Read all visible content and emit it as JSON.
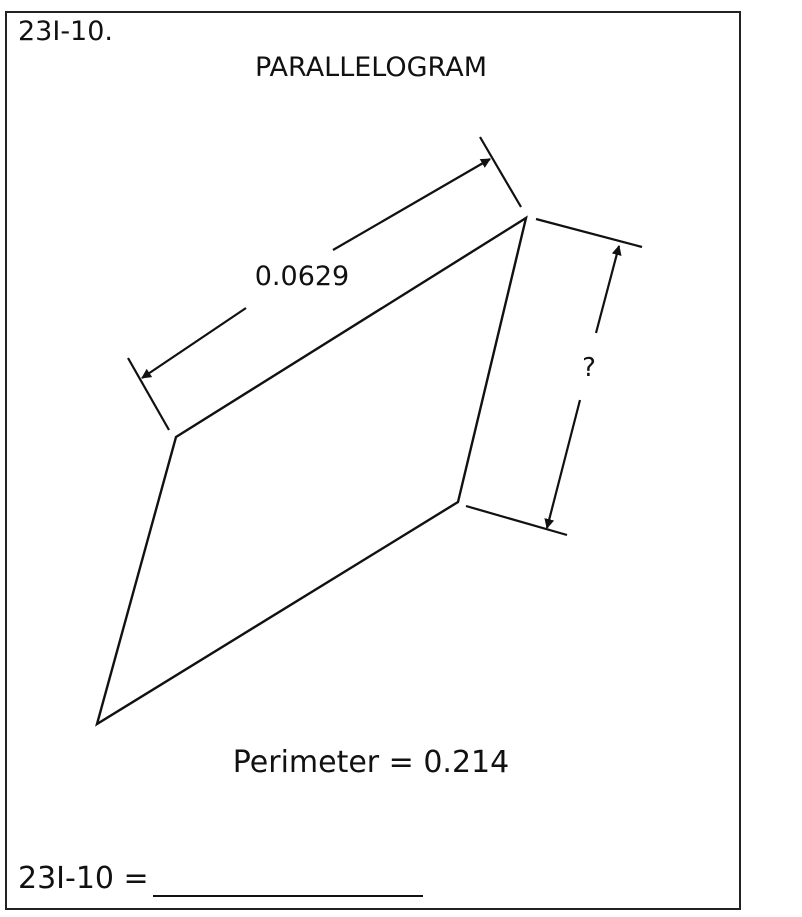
{
  "problem": {
    "id_label": "23I-10.",
    "title": "PARALLELOGRAM"
  },
  "figure": {
    "side_label": "0.0629",
    "unknown_label": "?"
  },
  "perimeter_text": "Perimeter = 0.214",
  "answer": {
    "label": "23I-10 =",
    "value": ""
  }
}
